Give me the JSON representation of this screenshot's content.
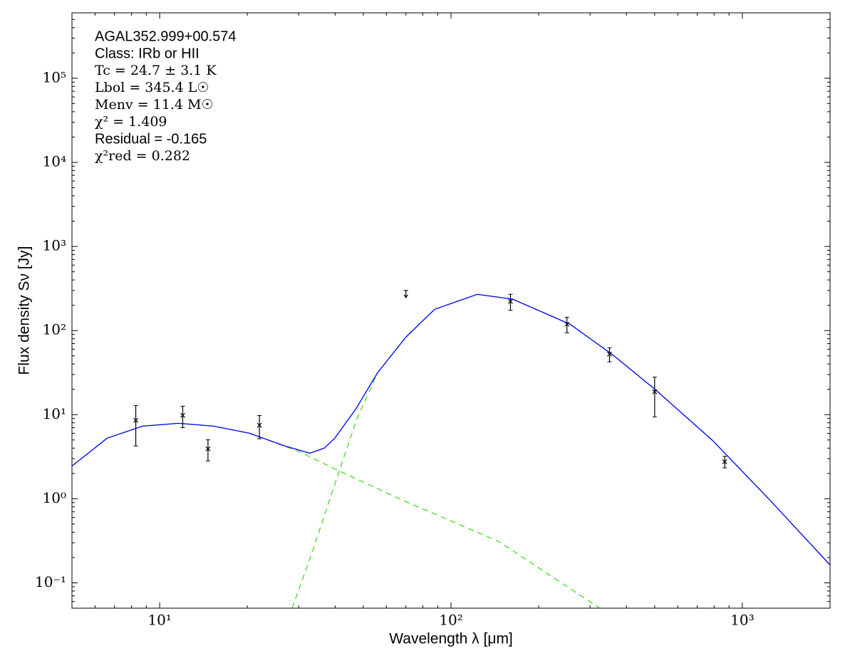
{
  "chart_data": {
    "type": "line",
    "xlabel": "Wavelength λ [μm]",
    "ylabel": "Flux density Sν [Jy]",
    "annotations": [
      "AGAL352.999+00.574",
      "Class: IRb or HII",
      "Tc = 24.7 ± 3.1 K",
      "Lbol = 345.4 L☉",
      "Menv = 11.4 M☉",
      "χ² = 1.409",
      "Residual = -0.165",
      "χ²red = 0.282"
    ],
    "log_x": true,
    "log_y": true,
    "xlim": [
      5,
      2000
    ],
    "ylim": [
      0.05,
      600000
    ],
    "xticks": [
      {
        "value": 10,
        "label": "10¹"
      },
      {
        "value": 100,
        "label": "10²"
      },
      {
        "value": 1000,
        "label": "10³"
      }
    ],
    "yticks": [
      {
        "value": 0.1,
        "label": "10⁻¹"
      },
      {
        "value": 1,
        "label": "10⁰"
      },
      {
        "value": 10,
        "label": "10¹"
      },
      {
        "value": 100,
        "label": "10²"
      },
      {
        "value": 1000,
        "label": "10³"
      },
      {
        "value": 10000,
        "label": "10⁴"
      },
      {
        "value": 100000,
        "label": "10⁵"
      }
    ],
    "series": [
      {
        "color": "#44dd22",
        "style": "dashed",
        "x": [
          5,
          6.6,
          8.74,
          11.6,
          15.3,
          20.3,
          30.2,
          39.9,
          66.4,
          146,
          324
        ],
        "values": [
          2.45,
          5.25,
          7.3,
          7.9,
          7.3,
          6.03,
          3.62,
          2.27,
          1.0,
          0.31,
          0.05
        ]
      },
      {
        "color": "#44dd22",
        "style": "dashed",
        "x": [
          28.5,
          33.7,
          39.9,
          47.3,
          56,
          70.1,
          87.9,
          123,
          163,
          256,
          359,
          503,
          789,
          1238,
          2000
        ],
        "values": [
          0.05,
          0.255,
          1.48,
          8.55,
          31.6,
          84,
          179,
          270,
          236,
          119,
          51.5,
          19.8,
          4.96,
          0.98,
          0.163
        ]
      },
      {
        "color": "#0000ff",
        "style": "solid",
        "x": [
          5,
          6.6,
          8.74,
          11.6,
          15.3,
          20.3,
          26.9,
          32.8,
          36.7,
          39.9,
          47.3,
          56,
          70.1,
          87.9,
          123,
          163,
          256,
          359,
          503,
          789,
          1238,
          2000
        ],
        "values": [
          2.45,
          5.25,
          7.3,
          7.9,
          7.3,
          6.03,
          4.24,
          3.48,
          4.0,
          5.25,
          11.9,
          31.6,
          84,
          179,
          270,
          236,
          119,
          51.5,
          19.8,
          4.96,
          0.98,
          0.163
        ]
      }
    ],
    "measurements": {
      "color": "#000000",
      "x": [
        8.28,
        12,
        14.65,
        22,
        160,
        250,
        350,
        500,
        870
      ],
      "values": [
        8.55,
        9.8,
        3.92,
        7.47,
        222,
        119,
        52.5,
        18.7,
        2.76
      ],
      "errors": [
        4.3,
        2.8,
        1.1,
        2.3,
        48,
        25,
        10,
        9.3,
        0.43
      ]
    },
    "upper_limits": {
      "color": "#000000",
      "x": [
        70
      ],
      "values": [
        300
      ]
    }
  }
}
